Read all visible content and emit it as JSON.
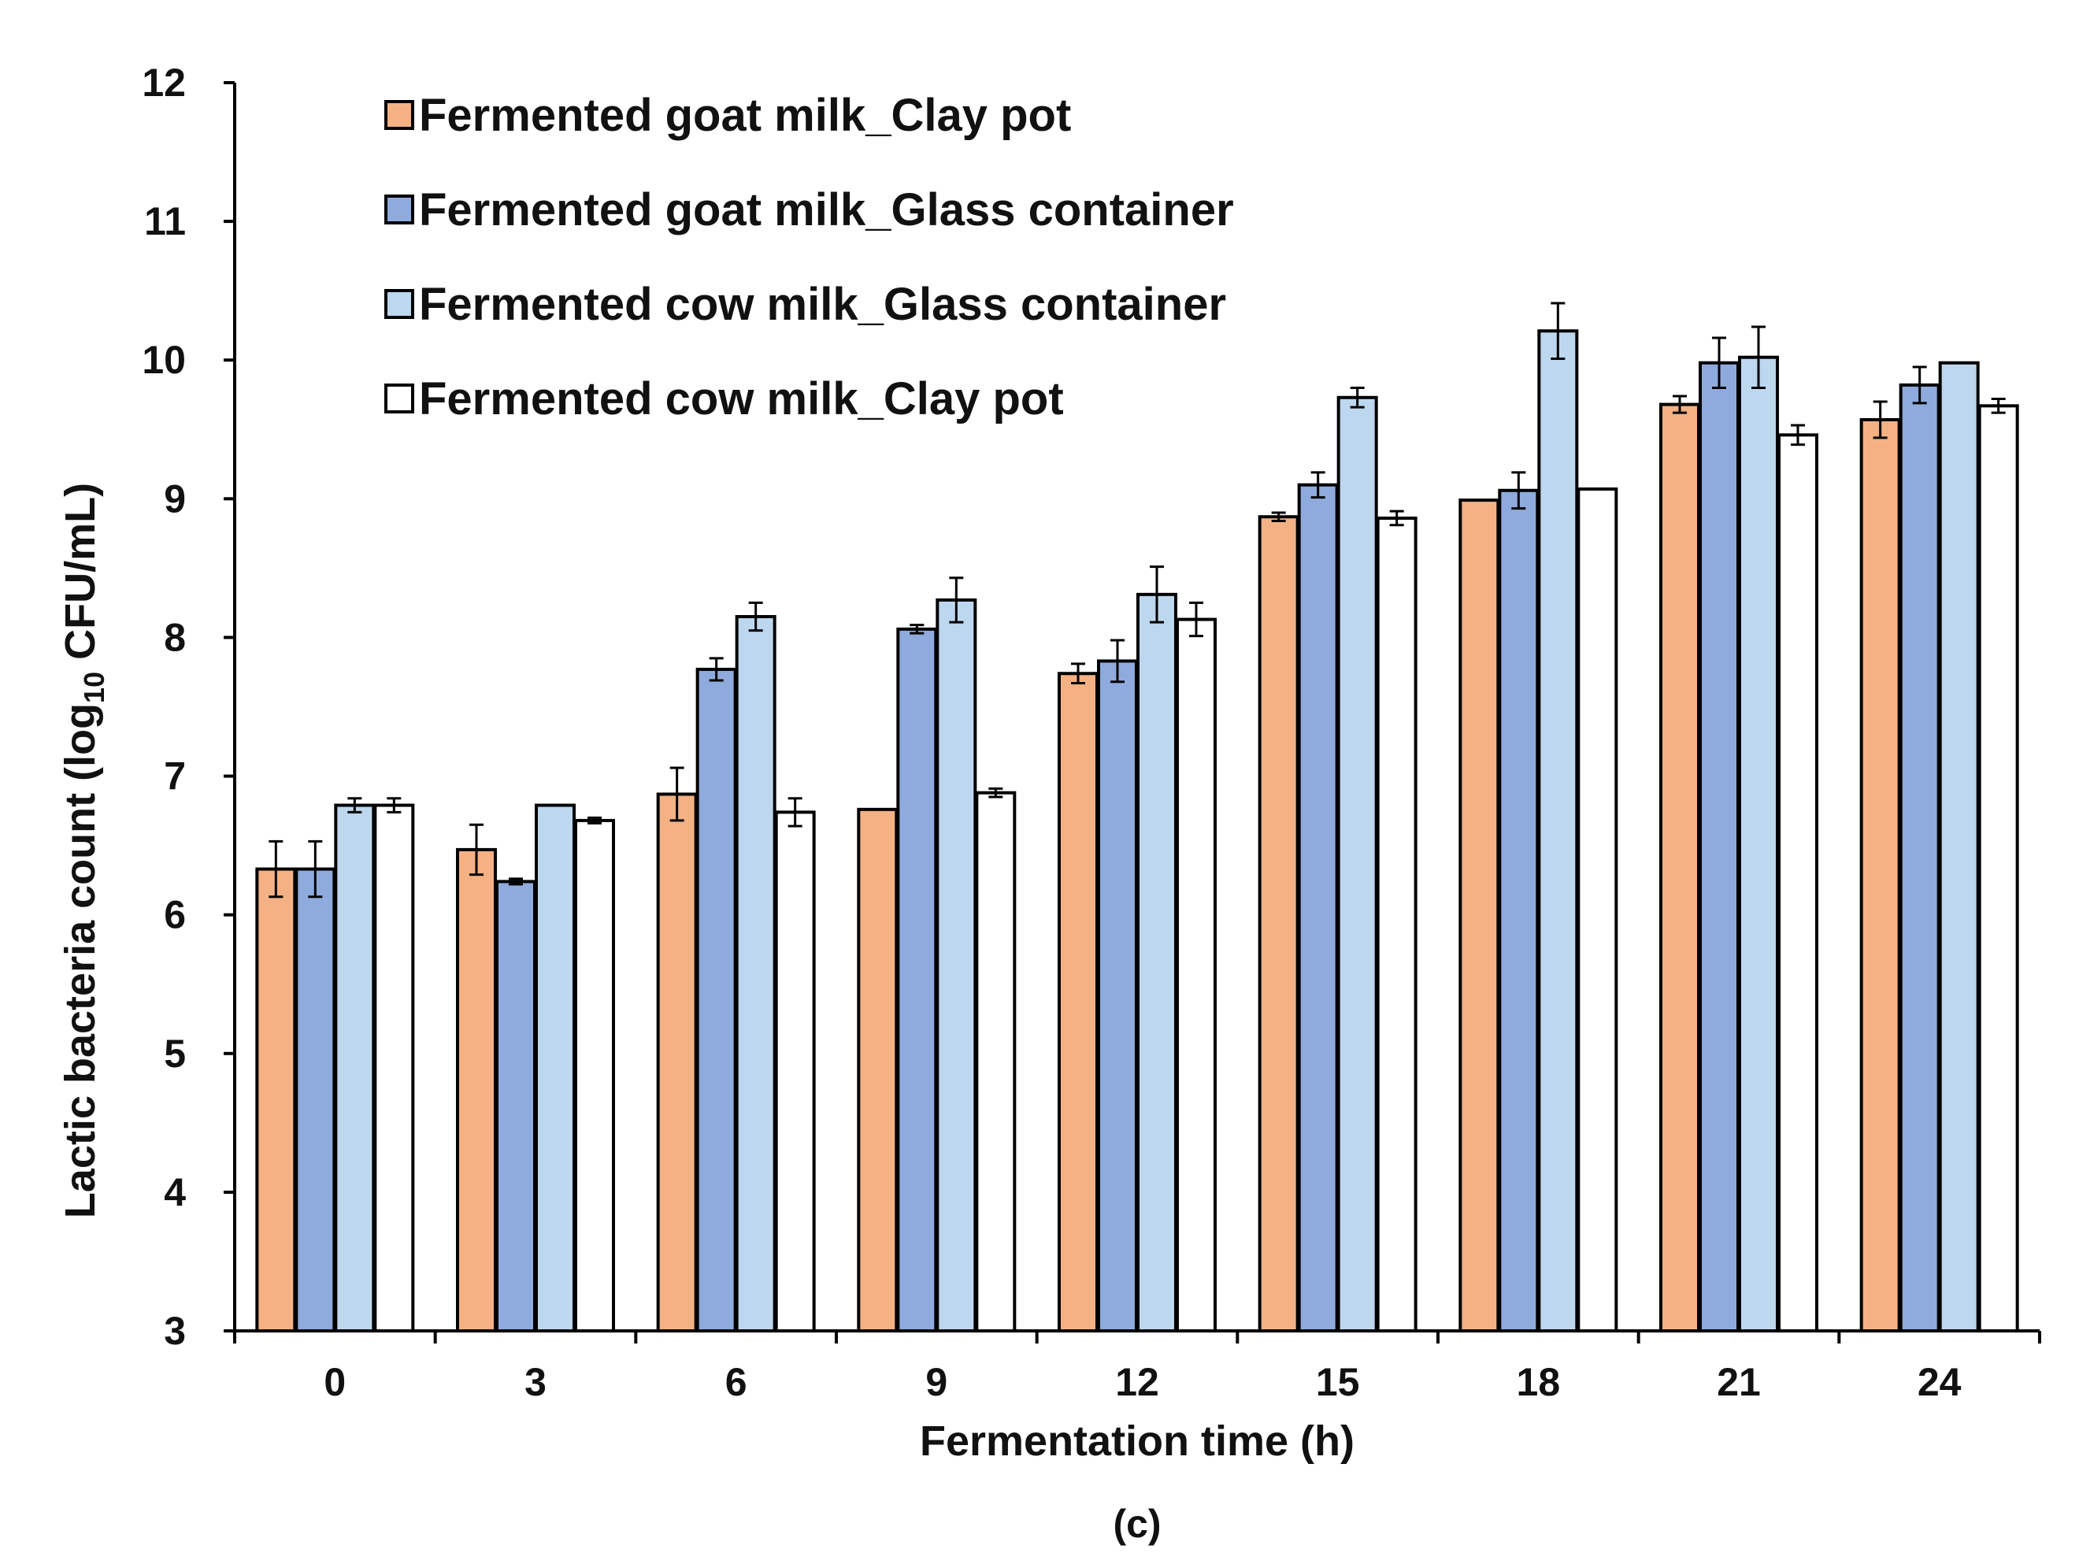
{
  "chart_data": {
    "type": "bar",
    "title": "",
    "panel_label": "(c)",
    "xlabel": "Fermentation time (h)",
    "ylabel_main": "Lactic bacteria count (log",
    "ylabel_sub": "10",
    "ylabel_tail": " CFU/mL)",
    "ylim": [
      3,
      12
    ],
    "yticks": [
      "3",
      "4",
      "5",
      "6",
      "7",
      "8",
      "9",
      "10",
      "11",
      "12"
    ],
    "categories": [
      "0",
      "3",
      "6",
      "9",
      "12",
      "15",
      "18",
      "21",
      "24"
    ],
    "legend_position": "top-left",
    "series": [
      {
        "name": "Fermented goat milk_Clay pot",
        "color": "#F4B183",
        "values": [
          6.33,
          6.47,
          6.87,
          6.76,
          7.74,
          8.87,
          8.99,
          9.68,
          9.57
        ],
        "errors": [
          0.2,
          0.18,
          0.19,
          0.0,
          0.07,
          0.03,
          0.0,
          0.06,
          0.13
        ]
      },
      {
        "name": "Fermented goat milk_Glass container",
        "color": "#8FAADC",
        "values": [
          6.33,
          6.24,
          7.77,
          8.06,
          7.83,
          9.1,
          9.06,
          9.98,
          9.82
        ],
        "errors": [
          0.2,
          0.02,
          0.08,
          0.03,
          0.15,
          0.09,
          0.13,
          0.18,
          0.13
        ]
      },
      {
        "name": "Fermented cow milk_Glass container",
        "color": "#BDD7EE",
        "values": [
          6.79,
          6.79,
          8.15,
          8.27,
          8.31,
          9.73,
          10.21,
          10.02,
          9.98
        ],
        "errors": [
          0.05,
          0.0,
          0.1,
          0.16,
          0.2,
          0.07,
          0.2,
          0.22,
          0.0
        ]
      },
      {
        "name": "Fermented cow milk_Clay pot",
        "color": "#FFFFFF",
        "values": [
          6.79,
          6.68,
          6.74,
          6.88,
          8.13,
          8.86,
          9.07,
          9.46,
          9.67
        ],
        "errors": [
          0.05,
          0.02,
          0.1,
          0.03,
          0.12,
          0.05,
          0.0,
          0.07,
          0.05
        ]
      }
    ]
  }
}
